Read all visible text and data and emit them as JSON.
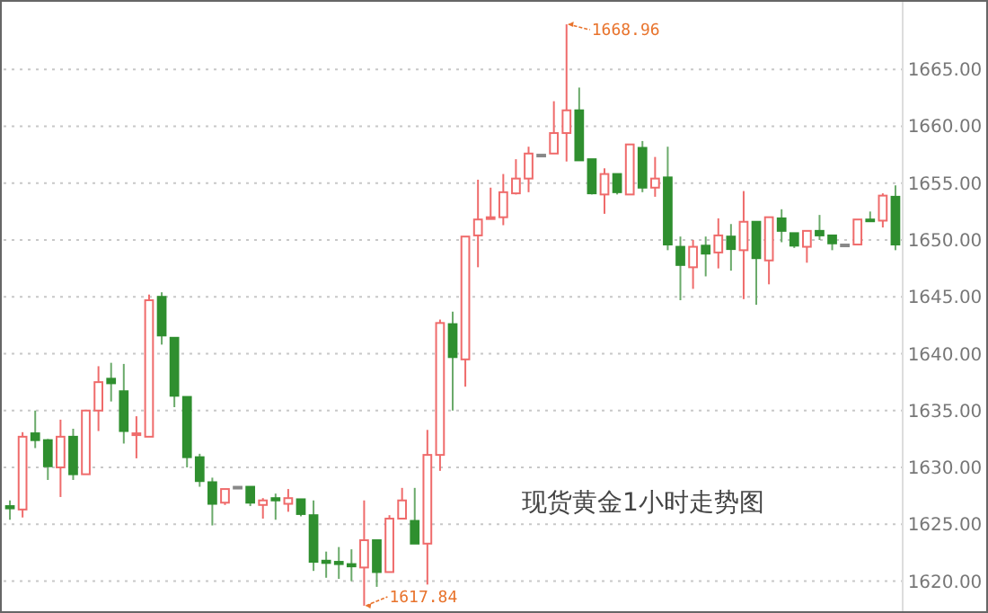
{
  "chart_data": {
    "type": "candlestick",
    "title": "现货黄金1小时走势图",
    "categories": [
      null,
      null,
      null,
      null,
      null,
      null,
      null,
      null,
      null,
      null,
      null,
      null,
      null,
      null,
      null,
      null,
      null,
      null,
      null,
      null,
      null,
      null,
      null,
      null,
      null,
      null,
      null,
      null,
      null,
      null,
      null,
      null,
      null,
      null,
      null,
      null,
      null,
      null,
      null,
      null,
      null,
      null,
      null,
      null,
      null,
      null,
      null,
      null,
      null,
      null,
      null,
      null,
      null,
      null,
      null,
      null,
      null,
      null,
      null,
      null,
      null,
      null,
      null,
      null,
      null,
      null,
      null,
      null,
      null,
      null,
      null
    ],
    "ohlc": [
      [
        1626.6,
        1627.1,
        1625.4,
        1626.4
      ],
      [
        1626.3,
        1633.1,
        1625.6,
        1632.7
      ],
      [
        1633.0,
        1635.0,
        1631.7,
        1632.4
      ],
      [
        1632.4,
        1632.5,
        1628.9,
        1630.1
      ],
      [
        1630.0,
        1634.2,
        1627.4,
        1632.7
      ],
      [
        1632.7,
        1633.4,
        1628.9,
        1629.4
      ],
      [
        1629.4,
        1635.0,
        1629.4,
        1635.0
      ],
      [
        1635.0,
        1638.9,
        1633.2,
        1637.5
      ],
      [
        1637.8,
        1639.2,
        1635.8,
        1637.4
      ],
      [
        1636.7,
        1639.1,
        1632.1,
        1633.2
      ],
      [
        1632.9,
        1634.5,
        1630.8,
        1633.0
      ],
      [
        1632.7,
        1645.2,
        1632.7,
        1644.7
      ],
      [
        1645.0,
        1645.4,
        1640.8,
        1641.6
      ],
      [
        1641.4,
        1641.4,
        1635.3,
        1636.3
      ],
      [
        1636.2,
        1636.2,
        1630.0,
        1630.9
      ],
      [
        1630.9,
        1631.2,
        1628.3,
        1628.8
      ],
      [
        1628.7,
        1629.1,
        1624.9,
        1626.8
      ],
      [
        1626.9,
        1628.1,
        1626.7,
        1628.1
      ],
      [
        1628.3,
        1628.3,
        1628.3,
        1628.3
      ],
      [
        1628.3,
        1628.3,
        1626.6,
        1626.9
      ],
      [
        1626.7,
        1627.3,
        1625.5,
        1627.1
      ],
      [
        1627.3,
        1627.7,
        1625.4,
        1627.1
      ],
      [
        1626.8,
        1628.1,
        1626.1,
        1627.3
      ],
      [
        1627.2,
        1627.2,
        1625.7,
        1625.9
      ],
      [
        1625.8,
        1627.1,
        1620.9,
        1621.7
      ],
      [
        1621.8,
        1622.6,
        1620.3,
        1621.6
      ],
      [
        1621.7,
        1623.0,
        1620.2,
        1621.5
      ],
      [
        1621.5,
        1622.8,
        1620.0,
        1621.3
      ],
      [
        1621.2,
        1627.1,
        1617.84,
        1623.6
      ],
      [
        1623.6,
        1623.6,
        1619.5,
        1620.8
      ],
      [
        1620.8,
        1625.8,
        1620.8,
        1625.5
      ],
      [
        1625.5,
        1628.2,
        1625.5,
        1627.1
      ],
      [
        1625.3,
        1628.2,
        1623.3,
        1623.3
      ],
      [
        1623.3,
        1633.3,
        1619.7,
        1631.1
      ],
      [
        1631.1,
        1643.0,
        1629.7,
        1642.7
      ],
      [
        1642.6,
        1643.7,
        1635.0,
        1639.7
      ],
      [
        1639.5,
        1650.3,
        1637.1,
        1650.3
      ],
      [
        1650.4,
        1655.3,
        1647.6,
        1651.8
      ],
      [
        1651.9,
        1654.6,
        1651.9,
        1652.0
      ],
      [
        1652.0,
        1655.8,
        1651.3,
        1654.2
      ],
      [
        1654.1,
        1657.1,
        1654.0,
        1655.4
      ],
      [
        1655.4,
        1658.2,
        1654.2,
        1657.6
      ],
      [
        1657.5,
        1657.5,
        1657.5,
        1657.5
      ],
      [
        1657.6,
        1662.2,
        1657.6,
        1659.4
      ],
      [
        1659.4,
        1668.96,
        1656.9,
        1661.4
      ],
      [
        1661.4,
        1663.4,
        1657.0,
        1657.0
      ],
      [
        1657.1,
        1657.1,
        1654.0,
        1654.1
      ],
      [
        1654.0,
        1656.3,
        1652.3,
        1655.8
      ],
      [
        1655.8,
        1655.8,
        1654.0,
        1654.2
      ],
      [
        1654.0,
        1658.4,
        1654.0,
        1658.4
      ],
      [
        1658.1,
        1658.7,
        1654.2,
        1654.6
      ],
      [
        1654.6,
        1657.3,
        1653.8,
        1655.4
      ],
      [
        1655.5,
        1658.2,
        1649.1,
        1649.6
      ],
      [
        1649.4,
        1650.3,
        1644.7,
        1647.8
      ],
      [
        1647.6,
        1650.0,
        1645.7,
        1649.4
      ],
      [
        1649.5,
        1650.3,
        1646.8,
        1648.8
      ],
      [
        1648.9,
        1651.9,
        1647.5,
        1650.4
      ],
      [
        1650.3,
        1651.4,
        1647.3,
        1649.2
      ],
      [
        1649.1,
        1654.3,
        1644.8,
        1651.6
      ],
      [
        1651.6,
        1651.6,
        1644.3,
        1648.4
      ],
      [
        1648.2,
        1652.0,
        1646.1,
        1652.0
      ],
      [
        1651.9,
        1652.7,
        1649.8,
        1650.8
      ],
      [
        1650.6,
        1650.6,
        1649.3,
        1649.5
      ],
      [
        1649.4,
        1650.8,
        1648.0,
        1650.8
      ],
      [
        1650.8,
        1652.2,
        1650.0,
        1650.4
      ],
      [
        1650.4,
        1650.4,
        1649.1,
        1649.7
      ],
      [
        1649.6,
        1649.6,
        1649.6,
        1649.6
      ],
      [
        1649.6,
        1651.8,
        1649.6,
        1651.8
      ],
      [
        1651.8,
        1652.5,
        1651.7,
        1651.7
      ],
      [
        1651.7,
        1654.1,
        1651.1,
        1653.9
      ],
      [
        1653.8,
        1654.8,
        1649.1,
        1649.6
      ]
    ],
    "ylim": [
      1617.2,
      1671.1
    ],
    "yticks": [
      {
        "value": 1620,
        "label": "1620.00"
      },
      {
        "value": 1625,
        "label": "1625.00"
      },
      {
        "value": 1630,
        "label": "1630.00"
      },
      {
        "value": 1635,
        "label": "1635.00"
      },
      {
        "value": 1640,
        "label": "1640.00"
      },
      {
        "value": 1645,
        "label": "1645.00"
      },
      {
        "value": 1650,
        "label": "1650.00"
      },
      {
        "value": 1655,
        "label": "1655.00"
      },
      {
        "value": 1660,
        "label": "1660.00"
      },
      {
        "value": 1665,
        "label": "1665.00"
      }
    ],
    "grid": "y",
    "annotations": [
      "1668.96",
      "1617.84"
    ]
  }
}
